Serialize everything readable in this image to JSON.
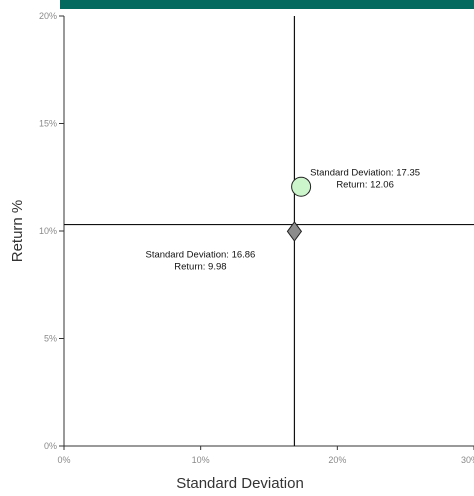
{
  "chart_data": {
    "type": "scatter",
    "title": "",
    "xlabel": "Standard Deviation",
    "ylabel": "Return %",
    "xlim": [
      0,
      30
    ],
    "ylim": [
      0,
      20
    ],
    "x_ticks": [
      "0%",
      "10%",
      "20%",
      "30%"
    ],
    "y_ticks": [
      "0%",
      "5%",
      "10%",
      "15%",
      "20%"
    ],
    "crosshair": {
      "x": 16.86,
      "y": 10.3
    },
    "points": [
      {
        "x": 17.35,
        "y": 12.06,
        "shape": "circle",
        "color": "#ccf5cc",
        "label1": "Standard Deviation: 17.35",
        "label2": "Return: 12.06"
      },
      {
        "x": 16.86,
        "y": 9.98,
        "shape": "diamond",
        "color": "#8c8c8c",
        "label1": "Standard Deviation: 16.86",
        "label2": "Return: 9.98"
      }
    ],
    "grid": false,
    "legend": "none"
  },
  "colors": {
    "header_bar": "#046a5f",
    "axis": "#333333",
    "tick_text": "#8a8a8a"
  }
}
